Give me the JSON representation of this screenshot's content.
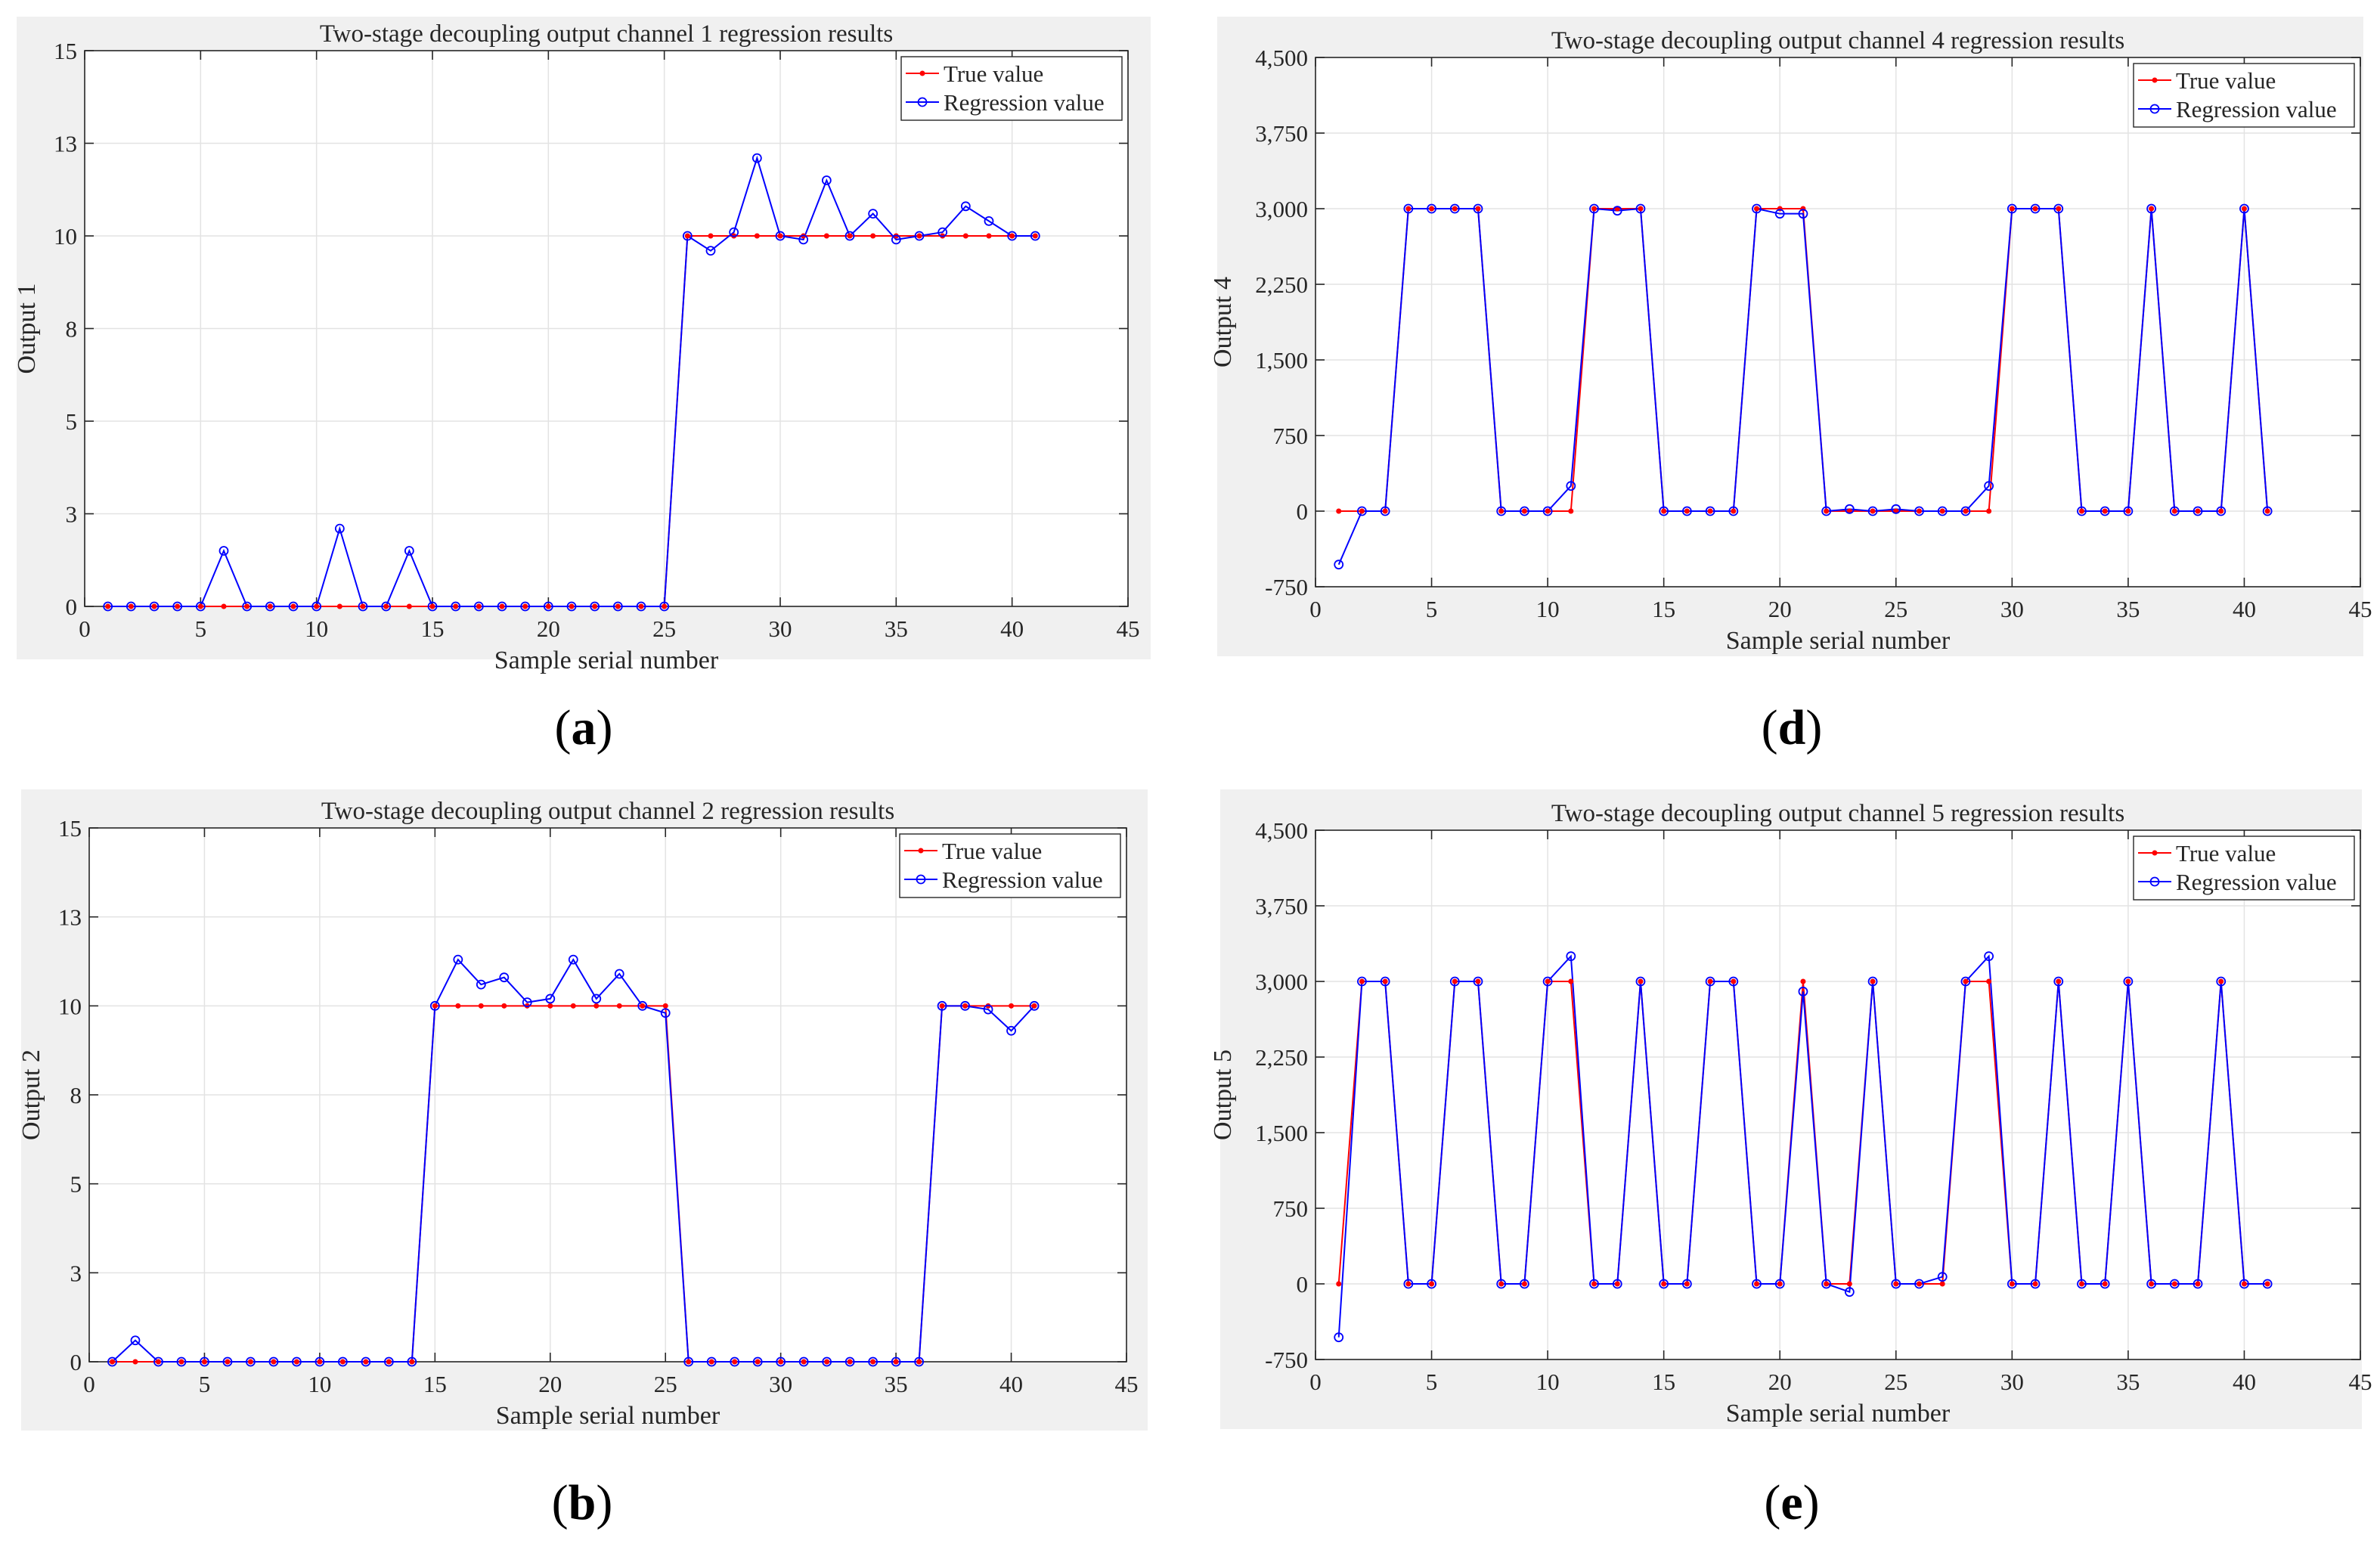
{
  "chart_data": [
    {
      "id": "a",
      "type": "line",
      "panel_label": "a",
      "title": "Two-stage decoupling output channel 1 regression results",
      "xlabel": "Sample serial number",
      "ylabel": "Output 1",
      "xlim": [
        0,
        45
      ],
      "ylim": [
        0,
        15
      ],
      "xticks": [
        0,
        5,
        10,
        15,
        20,
        25,
        30,
        35,
        40,
        45
      ],
      "xtick_labels": [
        "0",
        "5",
        "10",
        "15",
        "20",
        "25",
        "30",
        "35",
        "40",
        "45"
      ],
      "yticks": [
        0,
        2.5,
        5,
        7.5,
        10,
        12.5,
        15
      ],
      "ytick_labels": [
        "0",
        "3",
        "5",
        "8",
        "10",
        "13",
        "15"
      ],
      "grid": true,
      "legend_position": "top-right",
      "x": [
        1,
        2,
        3,
        4,
        5,
        6,
        7,
        8,
        9,
        10,
        11,
        12,
        13,
        14,
        15,
        16,
        17,
        18,
        19,
        20,
        21,
        22,
        23,
        24,
        25,
        26,
        27,
        28,
        29,
        30,
        31,
        32,
        33,
        34,
        35,
        36,
        37,
        38,
        39,
        40,
        41
      ],
      "series": [
        {
          "name": "True value",
          "color": "#ff0000",
          "marker": "dot",
          "values": [
            0,
            0,
            0,
            0,
            0,
            0,
            0,
            0,
            0,
            0,
            0,
            0,
            0,
            0,
            0,
            0,
            0,
            0,
            0,
            0,
            0,
            0,
            0,
            0,
            0,
            10,
            10,
            10,
            10,
            10,
            10,
            10,
            10,
            10,
            10,
            10,
            10,
            10,
            10,
            10,
            10
          ]
        },
        {
          "name": "Regression value",
          "color": "#0000ff",
          "marker": "circle",
          "values": [
            0,
            0,
            0,
            0,
            0,
            1.5,
            0,
            0,
            0,
            0,
            2.1,
            0,
            0,
            1.5,
            0,
            0,
            0,
            0,
            0,
            0,
            0,
            0,
            0,
            0,
            0,
            10,
            9.6,
            10.1,
            12.1,
            10,
            9.9,
            11.5,
            10,
            10.6,
            9.9,
            10,
            10.1,
            10.8,
            10.4,
            10,
            10
          ]
        }
      ]
    },
    {
      "id": "b",
      "type": "line",
      "panel_label": "b",
      "title": "Two-stage decoupling output channel 2 regression results",
      "xlabel": "Sample serial number",
      "ylabel": "Output 2",
      "xlim": [
        0,
        45
      ],
      "ylim": [
        0,
        15
      ],
      "xticks": [
        0,
        5,
        10,
        15,
        20,
        25,
        30,
        35,
        40,
        45
      ],
      "xtick_labels": [
        "0",
        "5",
        "10",
        "15",
        "20",
        "25",
        "30",
        "35",
        "40",
        "45"
      ],
      "yticks": [
        0,
        2.5,
        5,
        7.5,
        10,
        12.5,
        15
      ],
      "ytick_labels": [
        "0",
        "3",
        "5",
        "8",
        "10",
        "13",
        "15"
      ],
      "grid": true,
      "legend_position": "top-right",
      "x": [
        1,
        2,
        3,
        4,
        5,
        6,
        7,
        8,
        9,
        10,
        11,
        12,
        13,
        14,
        15,
        16,
        17,
        18,
        19,
        20,
        21,
        22,
        23,
        24,
        25,
        26,
        27,
        28,
        29,
        30,
        31,
        32,
        33,
        34,
        35,
        36,
        37,
        38,
        39,
        40,
        41
      ],
      "series": [
        {
          "name": "True value",
          "color": "#ff0000",
          "marker": "dot",
          "values": [
            0,
            0,
            0,
            0,
            0,
            0,
            0,
            0,
            0,
            0,
            0,
            0,
            0,
            0,
            10,
            10,
            10,
            10,
            10,
            10,
            10,
            10,
            10,
            10,
            10,
            0,
            0,
            0,
            0,
            0,
            0,
            0,
            0,
            0,
            0,
            0,
            10,
            10,
            10,
            10,
            10
          ]
        },
        {
          "name": "Regression value",
          "color": "#0000ff",
          "marker": "circle",
          "values": [
            0,
            0.6,
            0,
            0,
            0,
            0,
            0,
            0,
            0,
            0,
            0,
            0,
            0,
            0,
            10,
            11.3,
            10.6,
            10.8,
            10.1,
            10.2,
            11.3,
            10.2,
            10.9,
            10,
            9.8,
            0,
            0,
            0,
            0,
            0,
            0,
            0,
            0,
            0,
            0,
            0,
            10,
            10,
            9.9,
            9.3,
            10
          ]
        }
      ]
    },
    {
      "id": "d",
      "type": "line",
      "panel_label": "d",
      "title": "Two-stage decoupling output channel 4 regression results",
      "xlabel": "Sample serial number",
      "ylabel": "Output 4",
      "xlim": [
        0,
        45
      ],
      "ylim": [
        -750,
        4500
      ],
      "xticks": [
        0,
        5,
        10,
        15,
        20,
        25,
        30,
        35,
        40,
        45
      ],
      "xtick_labels": [
        "0",
        "5",
        "10",
        "15",
        "20",
        "25",
        "30",
        "35",
        "40",
        "45"
      ],
      "yticks": [
        -750,
        0,
        750,
        1500,
        2250,
        3000,
        3750,
        4500
      ],
      "ytick_labels": [
        "-750",
        "0",
        "750",
        "1,500",
        "2,250",
        "3,000",
        "3,750",
        "4,500"
      ],
      "grid": true,
      "legend_position": "top-right",
      "x": [
        1,
        2,
        3,
        4,
        5,
        6,
        7,
        8,
        9,
        10,
        11,
        12,
        13,
        14,
        15,
        16,
        17,
        18,
        19,
        20,
        21,
        22,
        23,
        24,
        25,
        26,
        27,
        28,
        29,
        30,
        31,
        32,
        33,
        34,
        35,
        36,
        37,
        38,
        39,
        40,
        41
      ],
      "series": [
        {
          "name": "True value",
          "color": "#ff0000",
          "marker": "dot",
          "values": [
            0,
            0,
            0,
            3000,
            3000,
            3000,
            3000,
            0,
            0,
            0,
            0,
            3000,
            3000,
            3000,
            0,
            0,
            0,
            0,
            3000,
            3000,
            3000,
            0,
            0,
            0,
            0,
            0,
            0,
            0,
            0,
            3000,
            3000,
            3000,
            0,
            0,
            0,
            3000,
            0,
            0,
            0,
            3000,
            0
          ]
        },
        {
          "name": "Regression value",
          "color": "#0000ff",
          "marker": "circle",
          "values": [
            -530,
            0,
            0,
            3000,
            3000,
            3000,
            3000,
            0,
            0,
            0,
            250,
            3000,
            2980,
            3000,
            0,
            0,
            0,
            0,
            3000,
            2950,
            2950,
            0,
            20,
            0,
            20,
            0,
            0,
            0,
            250,
            3000,
            3000,
            3000,
            0,
            0,
            0,
            3000,
            0,
            0,
            0,
            3000,
            0
          ]
        }
      ]
    },
    {
      "id": "e",
      "type": "line",
      "panel_label": "e",
      "title": "Two-stage decoupling output channel 5 regression results",
      "xlabel": "Sample serial number",
      "ylabel": "Output 5",
      "xlim": [
        0,
        45
      ],
      "ylim": [
        -750,
        4500
      ],
      "xticks": [
        0,
        5,
        10,
        15,
        20,
        25,
        30,
        35,
        40,
        45
      ],
      "xtick_labels": [
        "0",
        "5",
        "10",
        "15",
        "20",
        "25",
        "30",
        "35",
        "40",
        "45"
      ],
      "yticks": [
        -750,
        0,
        750,
        1500,
        2250,
        3000,
        3750,
        4500
      ],
      "ytick_labels": [
        "-750",
        "0",
        "750",
        "1,500",
        "2,250",
        "3,000",
        "3,750",
        "4,500"
      ],
      "grid": true,
      "legend_position": "top-right",
      "x": [
        1,
        2,
        3,
        4,
        5,
        6,
        7,
        8,
        9,
        10,
        11,
        12,
        13,
        14,
        15,
        16,
        17,
        18,
        19,
        20,
        21,
        22,
        23,
        24,
        25,
        26,
        27,
        28,
        29,
        30,
        31,
        32,
        33,
        34,
        35,
        36,
        37,
        38,
        39,
        40,
        41
      ],
      "series": [
        {
          "name": "True value",
          "color": "#ff0000",
          "marker": "dot",
          "values": [
            0,
            3000,
            3000,
            0,
            0,
            3000,
            3000,
            0,
            0,
            3000,
            3000,
            0,
            0,
            3000,
            0,
            0,
            3000,
            3000,
            0,
            0,
            3000,
            0,
            0,
            3000,
            0,
            0,
            0,
            3000,
            3000,
            0,
            0,
            3000,
            0,
            0,
            3000,
            0,
            0,
            0,
            3000,
            0,
            0
          ]
        },
        {
          "name": "Regression value",
          "color": "#0000ff",
          "marker": "circle",
          "values": [
            -530,
            3000,
            3000,
            0,
            0,
            3000,
            3000,
            0,
            0,
            3000,
            3250,
            0,
            0,
            3000,
            0,
            0,
            3000,
            3000,
            0,
            0,
            2900,
            0,
            -80,
            3000,
            0,
            0,
            70,
            3000,
            3250,
            0,
            0,
            3000,
            0,
            0,
            3000,
            0,
            0,
            0,
            3000,
            0,
            0
          ]
        }
      ]
    }
  ]
}
